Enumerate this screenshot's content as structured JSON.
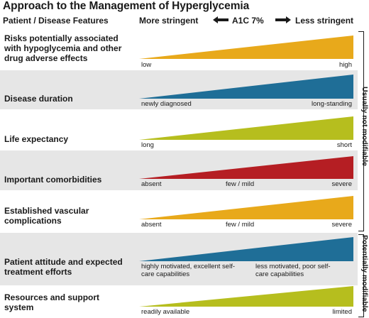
{
  "title": "Approach to the Management of Hyperglycemia",
  "header": {
    "features": "Patient / Disease Features",
    "more": "More stringent",
    "a1c": "A1C 7%",
    "less": "Less stringent"
  },
  "rows": [
    {
      "label": "Risks potentially associated with hypoglycemia and other drug adverse effects",
      "color": "#E8A91B",
      "anchors": [
        "low",
        "high"
      ]
    },
    {
      "label": "Disease duration",
      "color": "#1F6E97",
      "anchors": [
        "newly diagnosed",
        "long-standing"
      ]
    },
    {
      "label": "Life expectancy",
      "color": "#B6BE1E",
      "anchors": [
        "long",
        "short"
      ]
    },
    {
      "label": "Important comorbidities",
      "color": "#B51E23",
      "anchors": [
        "absent",
        "few / mild",
        "severe"
      ]
    },
    {
      "label": "Established vascular complications",
      "color": "#E8A91B",
      "anchors": [
        "absent",
        "few / mild",
        "severe"
      ]
    },
    {
      "label": "Patient attitude and expected treatment efforts",
      "color": "#1F6E97",
      "anchors": [
        "highly motivated, excellent self-care capabilities",
        "less motivated, poor self-care capabilities"
      ]
    },
    {
      "label": "Resources and support system",
      "color": "#B6BE1E",
      "anchors": [
        "readily available",
        "limited"
      ]
    }
  ],
  "groups": {
    "not_modifiable": "Usually not modifiable",
    "modifiable": "Potentially modifiable"
  }
}
